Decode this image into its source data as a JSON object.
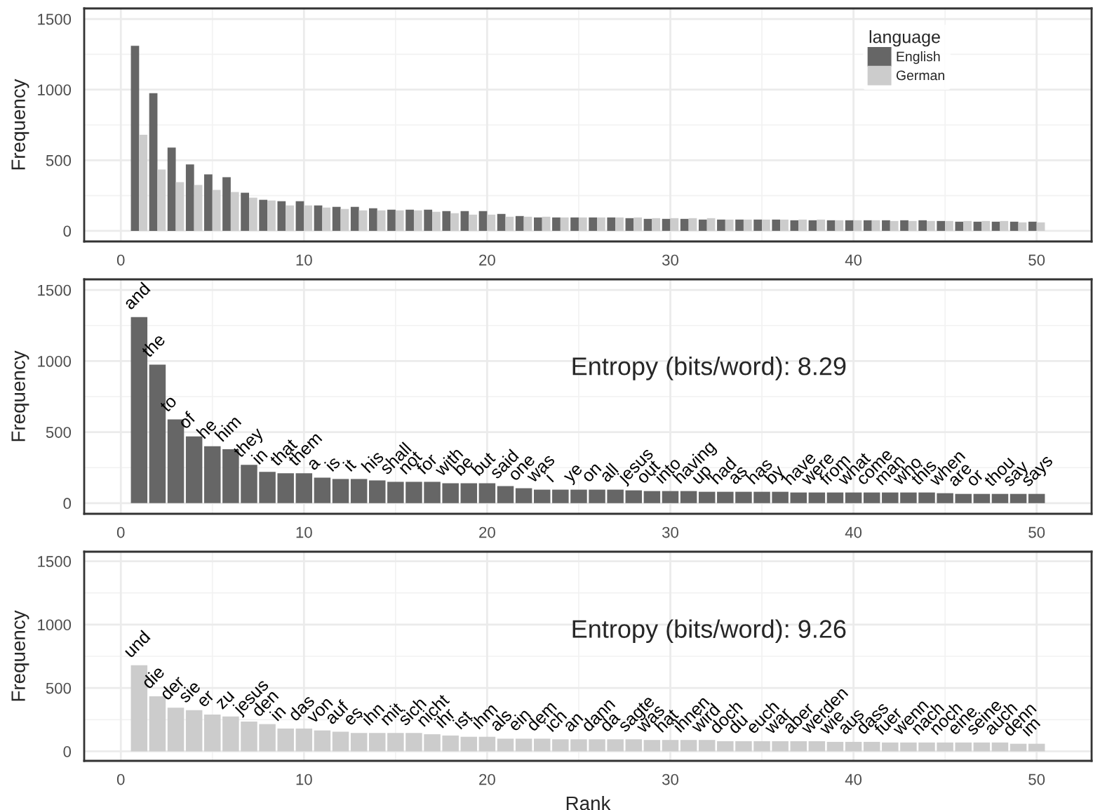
{
  "chart_data": [
    {
      "type": "bar",
      "ylabel": "Frequency",
      "legend_title": "language",
      "legend": "top right",
      "grid": true,
      "x": [
        1,
        2,
        3,
        4,
        5,
        6,
        7,
        8,
        9,
        10,
        11,
        12,
        13,
        14,
        15,
        16,
        17,
        18,
        19,
        20,
        21,
        22,
        23,
        24,
        25,
        26,
        27,
        28,
        29,
        30,
        31,
        32,
        33,
        34,
        35,
        36,
        37,
        38,
        39,
        40,
        41,
        42,
        43,
        44,
        45,
        46,
        47,
        48,
        49,
        50
      ],
      "xlim": [
        -2,
        53
      ],
      "xticks": [
        0,
        10,
        20,
        30,
        40,
        50
      ],
      "ylim": [
        -75,
        1575
      ],
      "yticks": [
        0,
        500,
        1000,
        1500
      ],
      "series": [
        {
          "name": "English",
          "color": "#666666",
          "values": [
            1310,
            975,
            590,
            470,
            400,
            380,
            270,
            220,
            210,
            210,
            180,
            170,
            170,
            160,
            150,
            150,
            150,
            140,
            140,
            140,
            120,
            105,
            95,
            95,
            95,
            95,
            95,
            90,
            85,
            85,
            85,
            80,
            80,
            80,
            80,
            80,
            75,
            75,
            75,
            75,
            75,
            75,
            75,
            75,
            70,
            65,
            65,
            65,
            65,
            65
          ]
        },
        {
          "name": "German",
          "color": "#cccccc",
          "values": [
            680,
            435,
            345,
            325,
            290,
            275,
            235,
            215,
            180,
            180,
            165,
            155,
            145,
            145,
            145,
            145,
            135,
            125,
            115,
            115,
            100,
            100,
            100,
            95,
            95,
            95,
            95,
            95,
            90,
            90,
            90,
            90,
            80,
            80,
            80,
            80,
            80,
            80,
            75,
            75,
            75,
            70,
            70,
            70,
            70,
            70,
            70,
            70,
            60,
            60
          ]
        }
      ]
    },
    {
      "type": "bar",
      "ylabel": "Frequency",
      "grid": true,
      "annotations": [
        "Entropy (bits/word): 8.29"
      ],
      "x": [
        1,
        2,
        3,
        4,
        5,
        6,
        7,
        8,
        9,
        10,
        11,
        12,
        13,
        14,
        15,
        16,
        17,
        18,
        19,
        20,
        21,
        22,
        23,
        24,
        25,
        26,
        27,
        28,
        29,
        30,
        31,
        32,
        33,
        34,
        35,
        36,
        37,
        38,
        39,
        40,
        41,
        42,
        43,
        44,
        45,
        46,
        47,
        48,
        49,
        50
      ],
      "xlim": [
        -2,
        53
      ],
      "xticks": [
        0,
        10,
        20,
        30,
        40,
        50
      ],
      "ylim": [
        -75,
        1575
      ],
      "yticks": [
        0,
        500,
        1000,
        1500
      ],
      "series": [
        {
          "color": "#666666",
          "values": [
            1310,
            975,
            590,
            470,
            400,
            380,
            270,
            220,
            210,
            210,
            180,
            170,
            170,
            160,
            150,
            150,
            150,
            140,
            140,
            140,
            120,
            105,
            95,
            95,
            95,
            95,
            95,
            90,
            85,
            85,
            85,
            80,
            80,
            80,
            80,
            80,
            75,
            75,
            75,
            75,
            75,
            75,
            75,
            75,
            70,
            65,
            65,
            65,
            65,
            65
          ],
          "value_labels": [
            "and",
            "the",
            "to",
            "of",
            "he",
            "him",
            "they",
            "in",
            "that",
            "them",
            "a",
            "is",
            "it",
            "his",
            "shall",
            "not",
            "for",
            "with",
            "be",
            "but",
            "said",
            "one",
            "was",
            "i",
            "ye",
            "on",
            "all",
            "jesus",
            "out",
            "into",
            "having",
            "up",
            "had",
            "as",
            "has",
            "by",
            "have",
            "were",
            "from",
            "what",
            "come",
            "man",
            "who",
            "this",
            "when",
            "are",
            "or",
            "thou",
            "say",
            "says"
          ]
        }
      ]
    },
    {
      "type": "bar",
      "ylabel": "Frequency",
      "xlabel": "Rank",
      "grid": true,
      "annotations": [
        "Entropy (bits/word): 9.26"
      ],
      "x": [
        1,
        2,
        3,
        4,
        5,
        6,
        7,
        8,
        9,
        10,
        11,
        12,
        13,
        14,
        15,
        16,
        17,
        18,
        19,
        20,
        21,
        22,
        23,
        24,
        25,
        26,
        27,
        28,
        29,
        30,
        31,
        32,
        33,
        34,
        35,
        36,
        37,
        38,
        39,
        40,
        41,
        42,
        43,
        44,
        45,
        46,
        47,
        48,
        49,
        50
      ],
      "xlim": [
        -2,
        53
      ],
      "xticks": [
        0,
        10,
        20,
        30,
        40,
        50
      ],
      "ylim": [
        -75,
        1575
      ],
      "yticks": [
        0,
        500,
        1000,
        1500
      ],
      "series": [
        {
          "color": "#cccccc",
          "values": [
            680,
            435,
            345,
            325,
            290,
            275,
            235,
            215,
            180,
            180,
            165,
            155,
            145,
            145,
            145,
            145,
            135,
            125,
            115,
            115,
            100,
            100,
            100,
            95,
            95,
            95,
            95,
            95,
            90,
            90,
            90,
            90,
            80,
            80,
            80,
            80,
            80,
            80,
            75,
            75,
            75,
            70,
            70,
            70,
            70,
            70,
            70,
            70,
            60,
            60
          ],
          "value_labels": [
            "und",
            "die",
            "der",
            "sie",
            "er",
            "zu",
            "jesus",
            "den",
            "in",
            "das",
            "von",
            "auf",
            "es",
            "ihn",
            "mit",
            "sich",
            "nicht",
            "ihr",
            "ist",
            "ihm",
            "als",
            "ein",
            "dem",
            "ich",
            "an",
            "dann",
            "da",
            "sagte",
            "was",
            "hat",
            "ihnen",
            "wird",
            "doch",
            "du",
            "euch",
            "war",
            "aber",
            "werden",
            "wie",
            "aus",
            "dass",
            "fuer",
            "wenn",
            "nach",
            "noch",
            "eine",
            "seine",
            "auch",
            "denn",
            "im"
          ]
        }
      ]
    }
  ]
}
